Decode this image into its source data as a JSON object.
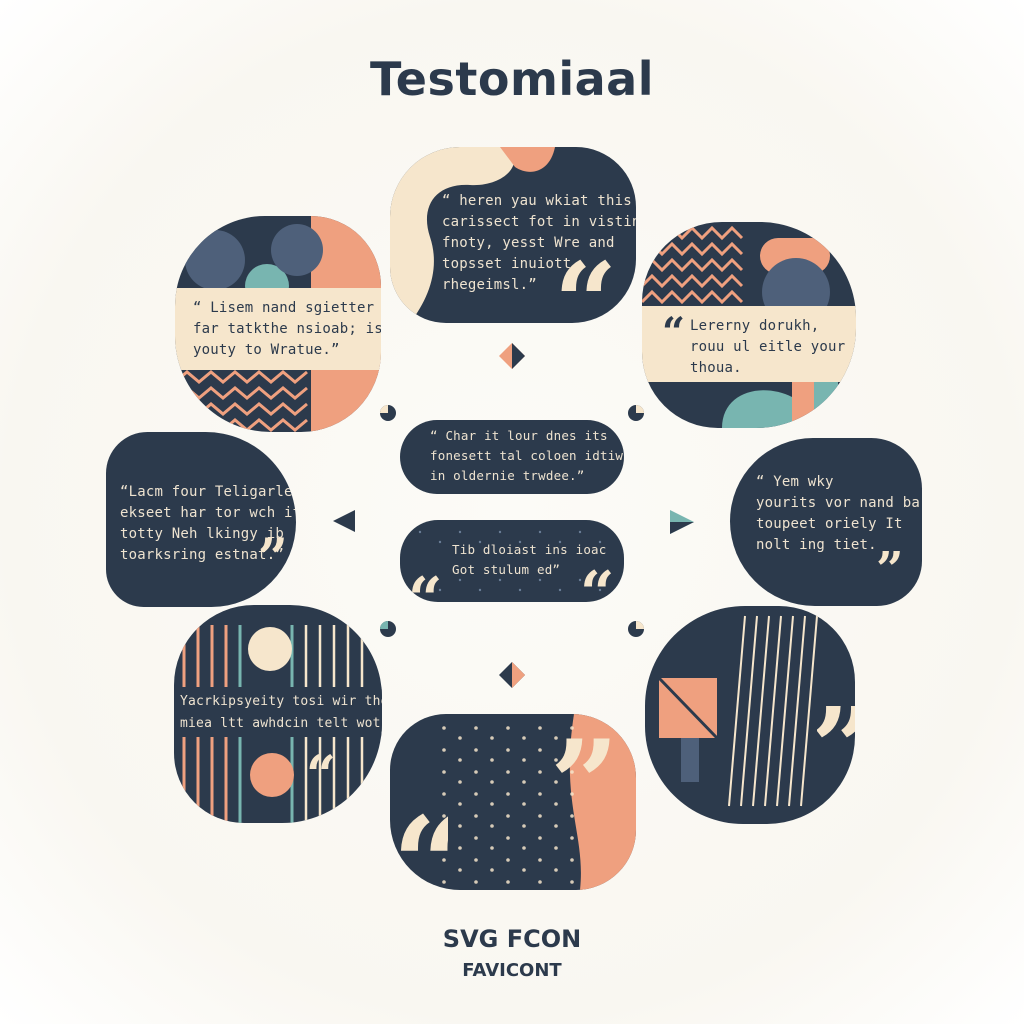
{
  "title": "Testomiaal",
  "colors": {
    "navy": "#2c3a4c",
    "peach": "#efa07f",
    "cream": "#f6e6cc",
    "teal": "#78b5b0",
    "slate": "#4e607a"
  },
  "quotes": {
    "top": "“ heren yau wkiat this\ncarissect fot in visting.\nfnoty, yesst Wre and\ntopsset inuiott\nrhegeimsl.”",
    "upper_left": "“ Lisem nand sgietter\nfar tatkthe nsioab; is\nyouty to Wratue.”",
    "upper_right": "Lererny dorukh,\nrouu ul eitle your or\nthoua.",
    "mid_left": "“Lacm four Teligarler\nekseet har tor wch it\ntotty Neh lkingy ib\ntoarksring estnat.”",
    "mid_right": "“ Yem wky\nyourits vor nand ba\ntoupeet oriely It\nnolt ing tiet.",
    "lower_left": "Yacrkipsyeity tosi wir the\nmiea ltt awhdcin telt wot?",
    "center_top": "“ Char it lour dnes its\nfonesett tal coloen idtiwad\nin oldernie trwdee.”",
    "center_bottom": "Tib dloiast ins ioac\nGot stulum ed”"
  },
  "footer": {
    "line1": "SVG FCON",
    "line2": "FAVICONT"
  }
}
